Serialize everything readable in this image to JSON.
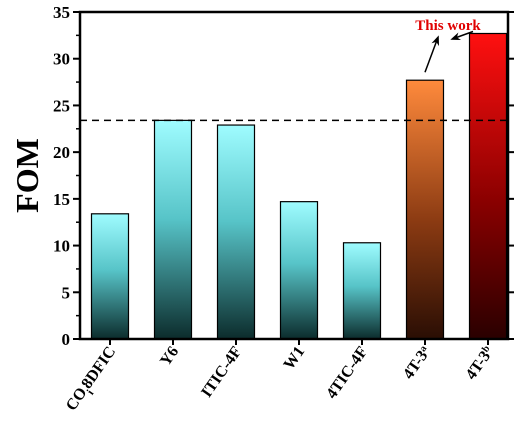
{
  "chart_data": {
    "type": "bar",
    "ylabel": "FOM",
    "ylim": [
      0,
      35
    ],
    "yticks": [
      0,
      5,
      10,
      15,
      20,
      25,
      30,
      35
    ],
    "categories": [
      {
        "label": "CO",
        "sub": "i",
        "rest": "8DFIC"
      },
      {
        "label": "Y6"
      },
      {
        "label": "ITIC-4F"
      },
      {
        "label": "W1"
      },
      {
        "label": "4TIC-4F"
      },
      {
        "label": "4T-3",
        "sup": "a"
      },
      {
        "label": "4T-3",
        "sup": "b"
      }
    ],
    "values": [
      13.4,
      23.4,
      22.9,
      14.7,
      10.3,
      27.7,
      32.7
    ],
    "reference_line": 23.4,
    "annotation": {
      "text": "This work",
      "targets": [
        5,
        6
      ]
    },
    "colors": {
      "cyan_top": "#9ffcff",
      "cyan_bottom": "#0c2c2c",
      "orange_top": "#ff8a3c",
      "orange_bottom": "#2a0e04",
      "red_top": "#ff1010",
      "red_bottom": "#2a0000",
      "annotation": "#e00000"
    }
  }
}
